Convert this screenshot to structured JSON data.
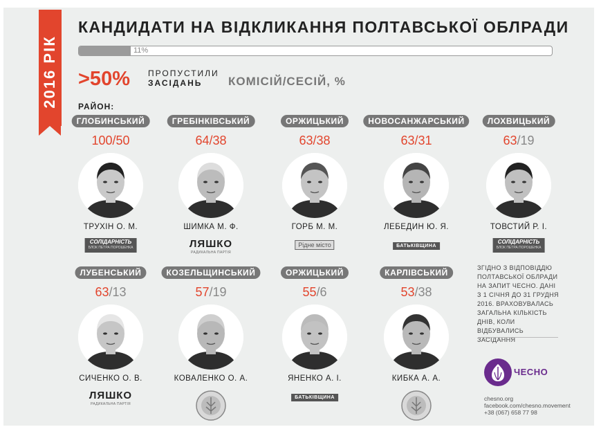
{
  "year": "2016 РІК",
  "title": "КАНДИДАТИ НА ВІДКЛИКАННЯ ПОЛТАВСЬКОЇ ОБЛРАДИ",
  "progress": {
    "value_percent": 11,
    "label": "11%"
  },
  "headline": {
    "big": ">50%",
    "line1": "ПРОПУСТИЛИ",
    "line2": "ЗАСІДАНЬ",
    "line3": "КОМІСІЙ/СЕСІЙ, %"
  },
  "district_label": "РАЙОН:",
  "candidates": [
    {
      "district": "ГЛОБИНСЬКИЙ",
      "committee": "100",
      "session": "50",
      "name": "ТРУХІН О. М.",
      "party": "СОЛІДАРНІСТЬ",
      "party_sub": "БЛОК ПЕТРА ПОРОШЕНКА"
    },
    {
      "district": "ГРЕБІНКІВСЬКИЙ",
      "committee": "64",
      "session": "38",
      "name": "ШИМКА М. Ф.",
      "party": "ЛЯШКО",
      "party_sub": "РАДИКАЛЬНА ПАРТІЯ"
    },
    {
      "district": "ОРЖИЦЬКИЙ",
      "committee": "63",
      "session": "38",
      "name": "ГОРБ М. М.",
      "party": "Рідне місто",
      "party_sub": ""
    },
    {
      "district": "НОВОСАНЖАРСЬКИЙ",
      "committee": "63",
      "session": "31",
      "name": "ЛЕБЕДИН Ю. Я.",
      "party": "БАТЬКІВЩИНА",
      "party_sub": ""
    },
    {
      "district": "ЛОХВИЦЬКИЙ",
      "committee": "63",
      "session": "19",
      "name": "ТОВСТИЙ Р. І.",
      "party": "СОЛІДАРНІСТЬ",
      "party_sub": "БЛОК ПЕТРА ПОРОШЕНКА"
    },
    {
      "district": "ЛУБЕНСЬКИЙ",
      "committee": "63",
      "session": "13",
      "name": "СИЧЕНКО О. В.",
      "party": "ЛЯШКО",
      "party_sub": "РАДИКАЛЬНА ПАРТІЯ"
    },
    {
      "district": "КОЗЕЛЬЩИНСЬКИЙ",
      "committee": "57",
      "session": "19",
      "name": "КОВАЛЕНКО О. А.",
      "party": "АГРАРНА ПАРТІЯ",
      "party_sub": "УКРАЇНИ"
    },
    {
      "district": "ОРЖИЦЬКИЙ",
      "committee": "55",
      "session": "6",
      "name": "ЯНЕНКО А. І.",
      "party": "БАТЬКІВЩИНА",
      "party_sub": ""
    },
    {
      "district": "КАРЛІВСЬКИЙ",
      "committee": "53",
      "session": "38",
      "name": "КИБКА А. А.",
      "party": "АГРАРНА ПАРТІЯ",
      "party_sub": "УКРАЇНИ"
    }
  ],
  "note": "ЗГІДНО З ВІДПОВІДДЮ ПОЛТАВСЬКОЇ ОБЛРАДИ НА ЗАПИТ ЧЕСНО. ДАНІ З 1 СІЧНЯ ДО 31 ГРУДНЯ 2016. ВРАХОВУВАЛАСЬ ЗАГАЛЬНА КІЛЬКІСТЬ ДНІВ, КОЛИ ВІДБУВАЛИСЬ ЗАСІДАННЯ",
  "logo": "ЧЕСНО",
  "contacts": {
    "site": "chesno.org",
    "facebook": "facebook.com/chesno.movement",
    "phone": "+38 (067) 658 77 98"
  },
  "colors": {
    "accent": "#e2452d",
    "pill": "#777777",
    "brand": "#6a2b8d",
    "background": "#edefee"
  }
}
